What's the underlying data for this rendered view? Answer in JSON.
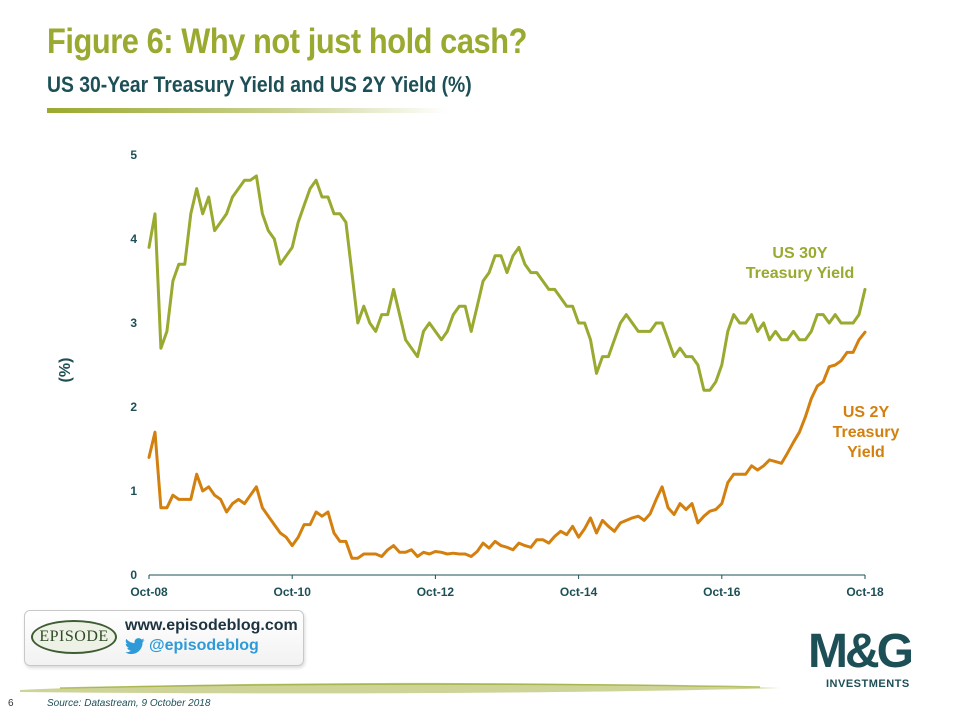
{
  "title": "Figure 6: Why not just hold cash?",
  "subtitle": "US 30-Year Treasury Yield and US 2Y Yield (%)",
  "footer": {
    "page_number": "6",
    "source": "Source: Datastream, 9 October 2018"
  },
  "blog_box": {
    "logo_text": "EPISODE",
    "url": "www.episodeblog.com",
    "twitter_handle": "@episodeblog"
  },
  "brand": {
    "mark": "M&G",
    "sub": "INVESTMENTS"
  },
  "colors": {
    "title": "#9aa92f",
    "subtitle": "#1d4f56",
    "series_30y": "#9aa92f",
    "series_2y": "#d3800f",
    "axis_text": "#1d4f56"
  },
  "chart_data": {
    "type": "line",
    "title": "US 30-Year Treasury Yield and US 2Y Yield (%)",
    "xlabel": "",
    "ylabel": "(%)",
    "x_ticks": [
      "Oct-08",
      "Oct-10",
      "Oct-12",
      "Oct-14",
      "Oct-16",
      "Oct-18"
    ],
    "y_ticks": [
      0,
      1,
      2,
      3,
      4,
      5
    ],
    "ylim": [
      0,
      5
    ],
    "xlim": [
      "Oct-08",
      "Oct-18"
    ],
    "grid": false,
    "series": [
      {
        "name": "US 30Y Treasury Yield",
        "label_lines": [
          "US 30Y",
          "Treasury Yield"
        ],
        "color": "#9aa92f",
        "points": [
          [
            "Oct-08",
            3.9
          ],
          [
            "Nov-08",
            4.3
          ],
          [
            "Dec-08",
            2.7
          ],
          [
            "Jan-09",
            2.9
          ],
          [
            "Feb-09",
            3.5
          ],
          [
            "Mar-09",
            3.7
          ],
          [
            "Apr-09",
            3.7
          ],
          [
            "May-09",
            4.3
          ],
          [
            "Jun-09",
            4.6
          ],
          [
            "Jul-09",
            4.3
          ],
          [
            "Aug-09",
            4.5
          ],
          [
            "Sep-09",
            4.1
          ],
          [
            "Oct-09",
            4.2
          ],
          [
            "Nov-09",
            4.3
          ],
          [
            "Dec-09",
            4.5
          ],
          [
            "Jan-10",
            4.6
          ],
          [
            "Feb-10",
            4.7
          ],
          [
            "Mar-10",
            4.7
          ],
          [
            "Apr-10",
            4.75
          ],
          [
            "May-10",
            4.3
          ],
          [
            "Jun-10",
            4.1
          ],
          [
            "Jul-10",
            4.0
          ],
          [
            "Aug-10",
            3.7
          ],
          [
            "Sep-10",
            3.8
          ],
          [
            "Oct-10",
            3.9
          ],
          [
            "Nov-10",
            4.2
          ],
          [
            "Dec-10",
            4.4
          ],
          [
            "Jan-11",
            4.6
          ],
          [
            "Feb-11",
            4.7
          ],
          [
            "Mar-11",
            4.5
          ],
          [
            "Apr-11",
            4.5
          ],
          [
            "May-11",
            4.3
          ],
          [
            "Jun-11",
            4.3
          ],
          [
            "Jul-11",
            4.2
          ],
          [
            "Aug-11",
            3.6
          ],
          [
            "Sep-11",
            3.0
          ],
          [
            "Oct-11",
            3.2
          ],
          [
            "Nov-11",
            3.0
          ],
          [
            "Dec-11",
            2.9
          ],
          [
            "Jan-12",
            3.1
          ],
          [
            "Feb-12",
            3.1
          ],
          [
            "Mar-12",
            3.4
          ],
          [
            "Apr-12",
            3.1
          ],
          [
            "May-12",
            2.8
          ],
          [
            "Jun-12",
            2.7
          ],
          [
            "Jul-12",
            2.6
          ],
          [
            "Aug-12",
            2.9
          ],
          [
            "Sep-12",
            3.0
          ],
          [
            "Oct-12",
            2.9
          ],
          [
            "Nov-12",
            2.8
          ],
          [
            "Dec-12",
            2.9
          ],
          [
            "Jan-13",
            3.1
          ],
          [
            "Feb-13",
            3.2
          ],
          [
            "Mar-13",
            3.2
          ],
          [
            "Apr-13",
            2.9
          ],
          [
            "May-13",
            3.2
          ],
          [
            "Jun-13",
            3.5
          ],
          [
            "Jul-13",
            3.6
          ],
          [
            "Aug-13",
            3.8
          ],
          [
            "Sep-13",
            3.8
          ],
          [
            "Oct-13",
            3.6
          ],
          [
            "Nov-13",
            3.8
          ],
          [
            "Dec-13",
            3.9
          ],
          [
            "Jan-14",
            3.7
          ],
          [
            "Feb-14",
            3.6
          ],
          [
            "Mar-14",
            3.6
          ],
          [
            "Apr-14",
            3.5
          ],
          [
            "May-14",
            3.4
          ],
          [
            "Jun-14",
            3.4
          ],
          [
            "Jul-14",
            3.3
          ],
          [
            "Aug-14",
            3.2
          ],
          [
            "Sep-14",
            3.2
          ],
          [
            "Oct-14",
            3.0
          ],
          [
            "Nov-14",
            3.0
          ],
          [
            "Dec-14",
            2.8
          ],
          [
            "Jan-15",
            2.4
          ],
          [
            "Feb-15",
            2.6
          ],
          [
            "Mar-15",
            2.6
          ],
          [
            "Apr-15",
            2.8
          ],
          [
            "May-15",
            3.0
          ],
          [
            "Jun-15",
            3.1
          ],
          [
            "Jul-15",
            3.0
          ],
          [
            "Aug-15",
            2.9
          ],
          [
            "Sep-15",
            2.9
          ],
          [
            "Oct-15",
            2.9
          ],
          [
            "Nov-15",
            3.0
          ],
          [
            "Dec-15",
            3.0
          ],
          [
            "Jan-16",
            2.8
          ],
          [
            "Feb-16",
            2.6
          ],
          [
            "Mar-16",
            2.7
          ],
          [
            "Apr-16",
            2.6
          ],
          [
            "May-16",
            2.6
          ],
          [
            "Jun-16",
            2.5
          ],
          [
            "Jul-16",
            2.2
          ],
          [
            "Aug-16",
            2.2
          ],
          [
            "Sep-16",
            2.3
          ],
          [
            "Oct-16",
            2.5
          ],
          [
            "Nov-16",
            2.9
          ],
          [
            "Dec-16",
            3.1
          ],
          [
            "Jan-17",
            3.0
          ],
          [
            "Feb-17",
            3.0
          ],
          [
            "Mar-17",
            3.1
          ],
          [
            "Apr-17",
            2.9
          ],
          [
            "May-17",
            3.0
          ],
          [
            "Jun-17",
            2.8
          ],
          [
            "Jul-17",
            2.9
          ],
          [
            "Aug-17",
            2.8
          ],
          [
            "Sep-17",
            2.8
          ],
          [
            "Oct-17",
            2.9
          ],
          [
            "Nov-17",
            2.8
          ],
          [
            "Dec-17",
            2.8
          ],
          [
            "Jan-18",
            2.9
          ],
          [
            "Feb-18",
            3.1
          ],
          [
            "Mar-18",
            3.1
          ],
          [
            "Apr-18",
            3.0
          ],
          [
            "May-18",
            3.1
          ],
          [
            "Jun-18",
            3.0
          ],
          [
            "Jul-18",
            3.0
          ],
          [
            "Aug-18",
            3.0
          ],
          [
            "Sep-18",
            3.1
          ],
          [
            "Oct-18",
            3.4
          ]
        ]
      },
      {
        "name": "US 2Y Treasury Yield",
        "label_lines": [
          "US 2Y",
          "Treasury",
          "Yield"
        ],
        "color": "#d3800f",
        "points": [
          [
            "Oct-08",
            1.4
          ],
          [
            "Nov-08",
            1.7
          ],
          [
            "Dec-08",
            0.8
          ],
          [
            "Jan-09",
            0.8
          ],
          [
            "Feb-09",
            0.95
          ],
          [
            "Mar-09",
            0.9
          ],
          [
            "Apr-09",
            0.9
          ],
          [
            "May-09",
            0.9
          ],
          [
            "Jun-09",
            1.2
          ],
          [
            "Jul-09",
            1.0
          ],
          [
            "Aug-09",
            1.05
          ],
          [
            "Sep-09",
            0.95
          ],
          [
            "Oct-09",
            0.9
          ],
          [
            "Nov-09",
            0.75
          ],
          [
            "Dec-09",
            0.85
          ],
          [
            "Jan-10",
            0.9
          ],
          [
            "Feb-10",
            0.85
          ],
          [
            "Mar-10",
            0.95
          ],
          [
            "Apr-10",
            1.05
          ],
          [
            "May-10",
            0.8
          ],
          [
            "Jun-10",
            0.7
          ],
          [
            "Jul-10",
            0.6
          ],
          [
            "Aug-10",
            0.5
          ],
          [
            "Sep-10",
            0.45
          ],
          [
            "Oct-10",
            0.35
          ],
          [
            "Nov-10",
            0.45
          ],
          [
            "Dec-10",
            0.6
          ],
          [
            "Jan-11",
            0.6
          ],
          [
            "Feb-11",
            0.75
          ],
          [
            "Mar-11",
            0.7
          ],
          [
            "Apr-11",
            0.75
          ],
          [
            "May-11",
            0.5
          ],
          [
            "Jun-11",
            0.4
          ],
          [
            "Jul-11",
            0.4
          ],
          [
            "Aug-11",
            0.2
          ],
          [
            "Sep-11",
            0.2
          ],
          [
            "Oct-11",
            0.25
          ],
          [
            "Nov-11",
            0.25
          ],
          [
            "Dec-11",
            0.25
          ],
          [
            "Jan-12",
            0.22
          ],
          [
            "Feb-12",
            0.3
          ],
          [
            "Mar-12",
            0.35
          ],
          [
            "Apr-12",
            0.27
          ],
          [
            "May-12",
            0.27
          ],
          [
            "Jun-12",
            0.3
          ],
          [
            "Jul-12",
            0.22
          ],
          [
            "Aug-12",
            0.27
          ],
          [
            "Sep-12",
            0.25
          ],
          [
            "Oct-12",
            0.28
          ],
          [
            "Nov-12",
            0.27
          ],
          [
            "Dec-12",
            0.25
          ],
          [
            "Jan-13",
            0.26
          ],
          [
            "Feb-13",
            0.25
          ],
          [
            "Mar-13",
            0.25
          ],
          [
            "Apr-13",
            0.22
          ],
          [
            "May-13",
            0.28
          ],
          [
            "Jun-13",
            0.38
          ],
          [
            "Jul-13",
            0.32
          ],
          [
            "Aug-13",
            0.4
          ],
          [
            "Sep-13",
            0.35
          ],
          [
            "Oct-13",
            0.33
          ],
          [
            "Nov-13",
            0.3
          ],
          [
            "Dec-13",
            0.38
          ],
          [
            "Jan-14",
            0.35
          ],
          [
            "Feb-14",
            0.33
          ],
          [
            "Mar-14",
            0.42
          ],
          [
            "Apr-14",
            0.42
          ],
          [
            "May-14",
            0.38
          ],
          [
            "Jun-14",
            0.46
          ],
          [
            "Jul-14",
            0.52
          ],
          [
            "Aug-14",
            0.48
          ],
          [
            "Sep-14",
            0.58
          ],
          [
            "Oct-14",
            0.45
          ],
          [
            "Nov-14",
            0.55
          ],
          [
            "Dec-14",
            0.68
          ],
          [
            "Jan-15",
            0.5
          ],
          [
            "Feb-15",
            0.65
          ],
          [
            "Mar-15",
            0.58
          ],
          [
            "Apr-15",
            0.52
          ],
          [
            "May-15",
            0.62
          ],
          [
            "Jun-15",
            0.65
          ],
          [
            "Jul-15",
            0.68
          ],
          [
            "Aug-15",
            0.7
          ],
          [
            "Sep-15",
            0.65
          ],
          [
            "Oct-15",
            0.73
          ],
          [
            "Nov-15",
            0.9
          ],
          [
            "Dec-15",
            1.05
          ],
          [
            "Jan-16",
            0.8
          ],
          [
            "Feb-16",
            0.72
          ],
          [
            "Mar-16",
            0.85
          ],
          [
            "Apr-16",
            0.78
          ],
          [
            "May-16",
            0.85
          ],
          [
            "Jun-16",
            0.62
          ],
          [
            "Jul-16",
            0.7
          ],
          [
            "Aug-16",
            0.76
          ],
          [
            "Sep-16",
            0.78
          ],
          [
            "Oct-16",
            0.85
          ],
          [
            "Nov-16",
            1.1
          ],
          [
            "Dec-16",
            1.2
          ],
          [
            "Jan-17",
            1.2
          ],
          [
            "Feb-17",
            1.2
          ],
          [
            "Mar-17",
            1.3
          ],
          [
            "Apr-17",
            1.25
          ],
          [
            "May-17",
            1.3
          ],
          [
            "Jun-17",
            1.37
          ],
          [
            "Jul-17",
            1.35
          ],
          [
            "Aug-17",
            1.33
          ],
          [
            "Sep-17",
            1.45
          ],
          [
            "Oct-17",
            1.58
          ],
          [
            "Nov-17",
            1.7
          ],
          [
            "Dec-17",
            1.88
          ],
          [
            "Jan-18",
            2.1
          ],
          [
            "Feb-18",
            2.25
          ],
          [
            "Mar-18",
            2.3
          ],
          [
            "Apr-18",
            2.48
          ],
          [
            "May-18",
            2.5
          ],
          [
            "Jun-18",
            2.55
          ],
          [
            "Jul-18",
            2.65
          ],
          [
            "Aug-18",
            2.65
          ],
          [
            "Sep-18",
            2.8
          ],
          [
            "Oct-18",
            2.89
          ]
        ]
      }
    ]
  }
}
